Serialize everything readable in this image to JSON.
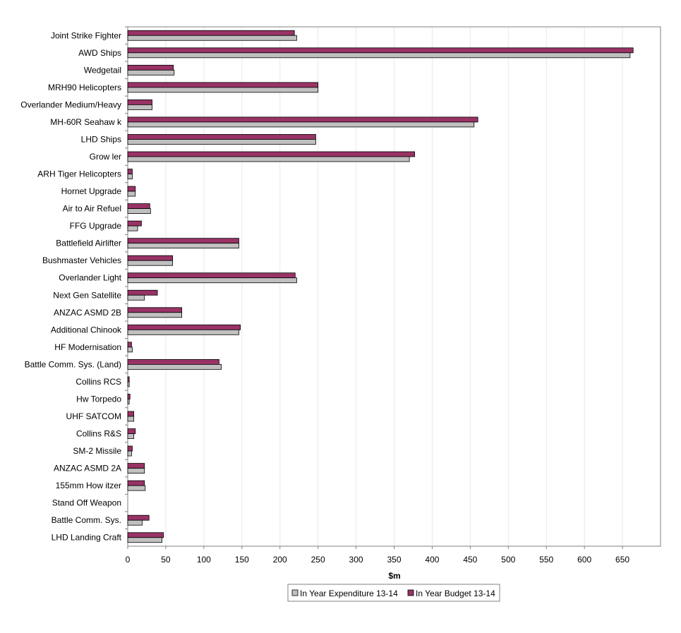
{
  "chart_data": {
    "type": "bar",
    "orientation": "horizontal",
    "title": "",
    "xlabel": "$m",
    "ylabel": "",
    "xlim": [
      0,
      700
    ],
    "xticks": [
      0,
      50,
      100,
      150,
      200,
      250,
      300,
      350,
      400,
      450,
      500,
      550,
      600,
      650
    ],
    "grid": true,
    "legend_position": "bottom",
    "categories": [
      "Joint Strike Fighter",
      "AWD Ships",
      "Wedgetail",
      "MRH90 Helicopters",
      "Overlander Medium/Heavy",
      "MH-60R Seahaw k",
      "LHD Ships",
      "Grow ler",
      "ARH Tiger Helicopters",
      "Hornet Upgrade",
      "Air to Air Refuel",
      "FFG Upgrade",
      "Battlefield Airlifter",
      "Bushmaster Vehicles",
      "Overlander Light",
      "Next Gen Satellite",
      "ANZAC ASMD 2B",
      "Additional Chinook",
      "HF Modernisation",
      "Battle Comm. Sys. (Land)",
      "Collins RCS",
      "Hw Torpedo",
      "UHF SATCOM",
      "Collins R&S",
      "SM-2 Missile",
      "ANZAC ASMD 2A",
      "155mm How itzer",
      "Stand Off Weapon",
      "Battle Comm. Sys.",
      "LHD Landing Craft"
    ],
    "series": [
      {
        "name": "In Year Expenditure 13-14",
        "color": "#c0c0c0",
        "values": [
          222,
          660,
          61,
          250,
          32,
          455,
          247,
          370,
          6,
          10,
          30,
          13,
          146,
          59,
          222,
          22,
          71,
          146,
          6,
          123,
          2,
          2,
          8,
          8,
          5,
          22,
          23,
          0,
          19,
          45
        ]
      },
      {
        "name": "In Year Budget 13-14",
        "color": "#993366",
        "values": [
          219,
          664,
          60,
          250,
          32,
          460,
          247,
          377,
          6,
          10,
          29,
          18,
          146,
          59,
          220,
          39,
          71,
          148,
          5,
          120,
          2,
          3,
          8,
          10,
          6,
          22,
          22,
          0,
          28,
          47
        ]
      }
    ]
  }
}
